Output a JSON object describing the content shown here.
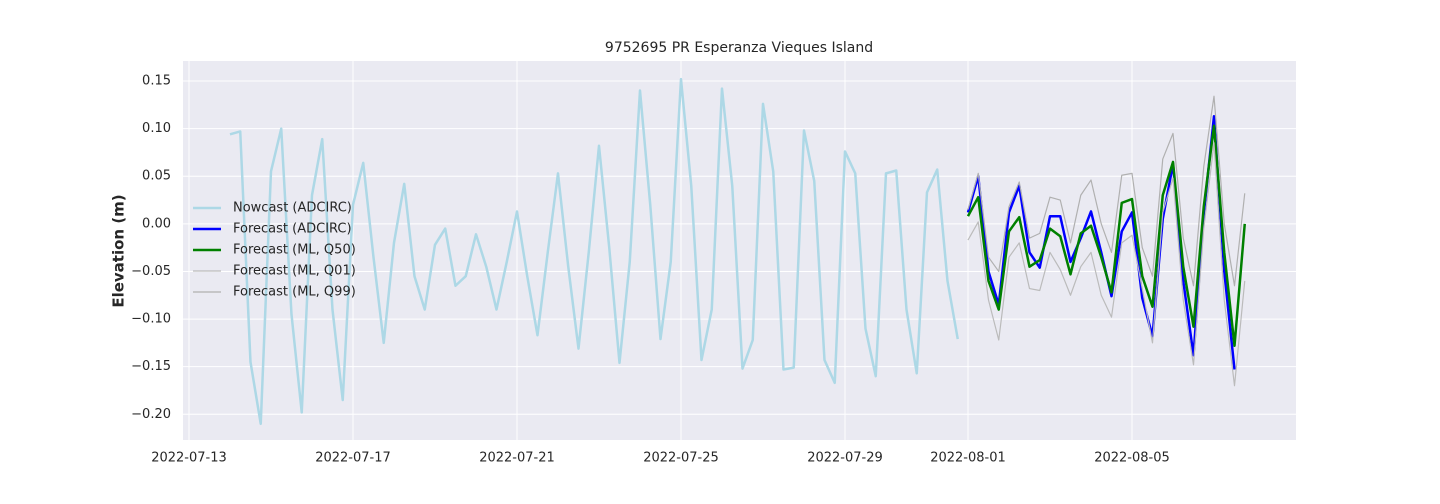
{
  "chart_data": {
    "type": "line",
    "title": "9752695 PR Esperanza Vieques Island",
    "y_label": "Elevation (m)",
    "x": [
      "2022-07-14 00:00",
      "2022-07-14 06:00",
      "2022-07-14 12:00",
      "2022-07-14 18:00",
      "2022-07-15 00:00",
      "2022-07-15 06:00",
      "2022-07-15 12:00",
      "2022-07-15 18:00",
      "2022-07-16 00:00",
      "2022-07-16 06:00",
      "2022-07-16 12:00",
      "2022-07-16 18:00",
      "2022-07-17 00:00",
      "2022-07-17 06:00",
      "2022-07-17 12:00",
      "2022-07-17 18:00",
      "2022-07-18 00:00",
      "2022-07-18 06:00",
      "2022-07-18 12:00",
      "2022-07-18 18:00",
      "2022-07-19 00:00",
      "2022-07-19 06:00",
      "2022-07-19 12:00",
      "2022-07-19 18:00",
      "2022-07-20 00:00",
      "2022-07-20 06:00",
      "2022-07-20 12:00",
      "2022-07-20 18:00",
      "2022-07-21 00:00",
      "2022-07-21 06:00",
      "2022-07-21 12:00",
      "2022-07-21 18:00",
      "2022-07-22 00:00",
      "2022-07-22 06:00",
      "2022-07-22 12:00",
      "2022-07-22 18:00",
      "2022-07-23 00:00",
      "2022-07-23 06:00",
      "2022-07-23 12:00",
      "2022-07-23 18:00",
      "2022-07-24 00:00",
      "2022-07-24 06:00",
      "2022-07-24 12:00",
      "2022-07-24 18:00",
      "2022-07-25 00:00",
      "2022-07-25 06:00",
      "2022-07-25 12:00",
      "2022-07-25 18:00",
      "2022-07-26 00:00",
      "2022-07-26 06:00",
      "2022-07-26 12:00",
      "2022-07-26 18:00",
      "2022-07-27 00:00",
      "2022-07-27 06:00",
      "2022-07-27 12:00",
      "2022-07-27 18:00",
      "2022-07-28 00:00",
      "2022-07-28 06:00",
      "2022-07-28 12:00",
      "2022-07-28 18:00",
      "2022-07-29 00:00",
      "2022-07-29 06:00",
      "2022-07-29 12:00",
      "2022-07-29 18:00",
      "2022-07-30 00:00",
      "2022-07-30 06:00",
      "2022-07-30 12:00",
      "2022-07-30 18:00",
      "2022-07-31 00:00",
      "2022-07-31 06:00",
      "2022-07-31 12:00",
      "2022-07-31 18:00",
      "2022-08-01 00:00",
      "2022-08-01 06:00",
      "2022-08-01 12:00",
      "2022-08-01 18:00",
      "2022-08-02 00:00",
      "2022-08-02 06:00",
      "2022-08-02 12:00",
      "2022-08-02 18:00",
      "2022-08-03 00:00",
      "2022-08-03 06:00",
      "2022-08-03 12:00",
      "2022-08-03 18:00",
      "2022-08-04 00:00",
      "2022-08-04 06:00",
      "2022-08-04 12:00",
      "2022-08-04 18:00",
      "2022-08-05 00:00",
      "2022-08-05 06:00",
      "2022-08-05 12:00",
      "2022-08-05 18:00",
      "2022-08-06 00:00",
      "2022-08-06 06:00",
      "2022-08-06 12:00",
      "2022-08-06 18:00",
      "2022-08-07 00:00",
      "2022-08-07 06:00",
      "2022-08-07 12:00",
      "2022-08-07 18:00"
    ],
    "series": [
      {
        "name": "Nowcast (ADCIRC)",
        "color": "#add8e6",
        "width": 2.5,
        "values": [
          0.094,
          0.097,
          -0.145,
          -0.21,
          0.055,
          0.1,
          -0.095,
          -0.198,
          0.03,
          0.089,
          -0.09,
          -0.185,
          0.02,
          0.064,
          -0.035,
          -0.125,
          -0.02,
          0.042,
          -0.055,
          -0.09,
          -0.022,
          -0.005,
          -0.065,
          -0.055,
          -0.011,
          -0.045,
          -0.09,
          -0.04,
          0.013,
          -0.055,
          -0.117,
          -0.03,
          0.053,
          -0.045,
          -0.131,
          -0.03,
          0.082,
          -0.025,
          -0.146,
          -0.04,
          0.14,
          0.02,
          -0.121,
          -0.04,
          0.152,
          0.04,
          -0.143,
          -0.09,
          0.142,
          0.04,
          -0.152,
          -0.122,
          0.126,
          0.055,
          -0.153,
          -0.151,
          0.098,
          0.045,
          -0.143,
          -0.167,
          0.076,
          0.053,
          -0.11,
          -0.16,
          0.053,
          0.056,
          -0.09,
          -0.157,
          0.033,
          0.057,
          -0.06,
          -0.121,
          null,
          null,
          null,
          null,
          null,
          null,
          null,
          null,
          null,
          null,
          null,
          null,
          null,
          null,
          null,
          null,
          null,
          null,
          null,
          null,
          null,
          null,
          null,
          null,
          null,
          null,
          null,
          null
        ]
      },
      {
        "name": "Forecast (ADCIRC)",
        "color": "#0000ff",
        "width": 2.5,
        "values": [
          null,
          null,
          null,
          null,
          null,
          null,
          null,
          null,
          null,
          null,
          null,
          null,
          null,
          null,
          null,
          null,
          null,
          null,
          null,
          null,
          null,
          null,
          null,
          null,
          null,
          null,
          null,
          null,
          null,
          null,
          null,
          null,
          null,
          null,
          null,
          null,
          null,
          null,
          null,
          null,
          null,
          null,
          null,
          null,
          null,
          null,
          null,
          null,
          null,
          null,
          null,
          null,
          null,
          null,
          null,
          null,
          null,
          null,
          null,
          null,
          null,
          null,
          null,
          null,
          null,
          null,
          null,
          null,
          null,
          null,
          null,
          null,
          0.012,
          0.05,
          -0.05,
          -0.085,
          0.012,
          0.04,
          -0.03,
          -0.046,
          0.008,
          0.008,
          -0.04,
          -0.015,
          0.013,
          -0.03,
          -0.076,
          -0.008,
          0.012,
          -0.078,
          -0.118,
          0.005,
          0.063,
          -0.06,
          -0.138,
          0.01,
          0.113,
          -0.05,
          -0.153,
          null
        ]
      },
      {
        "name": "Forecast (ML, Q50)",
        "color": "#008000",
        "width": 2.5,
        "values": [
          null,
          null,
          null,
          null,
          null,
          null,
          null,
          null,
          null,
          null,
          null,
          null,
          null,
          null,
          null,
          null,
          null,
          null,
          null,
          null,
          null,
          null,
          null,
          null,
          null,
          null,
          null,
          null,
          null,
          null,
          null,
          null,
          null,
          null,
          null,
          null,
          null,
          null,
          null,
          null,
          null,
          null,
          null,
          null,
          null,
          null,
          null,
          null,
          null,
          null,
          null,
          null,
          null,
          null,
          null,
          null,
          null,
          null,
          null,
          null,
          null,
          null,
          null,
          null,
          null,
          null,
          null,
          null,
          null,
          null,
          null,
          null,
          0.008,
          0.028,
          -0.06,
          -0.09,
          -0.008,
          0.007,
          -0.045,
          -0.038,
          -0.005,
          -0.013,
          -0.053,
          -0.01,
          -0.002,
          -0.035,
          -0.072,
          0.022,
          0.026,
          -0.055,
          -0.087,
          0.03,
          0.065,
          -0.045,
          -0.108,
          0.018,
          0.103,
          -0.03,
          -0.128,
          0.0
        ]
      },
      {
        "name": "Forecast (ML, Q01)",
        "color": "#bbbbbb",
        "width": 1.2,
        "values": [
          null,
          null,
          null,
          null,
          null,
          null,
          null,
          null,
          null,
          null,
          null,
          null,
          null,
          null,
          null,
          null,
          null,
          null,
          null,
          null,
          null,
          null,
          null,
          null,
          null,
          null,
          null,
          null,
          null,
          null,
          null,
          null,
          null,
          null,
          null,
          null,
          null,
          null,
          null,
          null,
          null,
          null,
          null,
          null,
          null,
          null,
          null,
          null,
          null,
          null,
          null,
          null,
          null,
          null,
          null,
          null,
          null,
          null,
          null,
          null,
          null,
          null,
          null,
          null,
          null,
          null,
          null,
          null,
          null,
          null,
          null,
          null,
          -0.017,
          0.002,
          -0.08,
          -0.122,
          -0.035,
          -0.02,
          -0.068,
          -0.07,
          -0.03,
          -0.048,
          -0.075,
          -0.045,
          -0.03,
          -0.075,
          -0.098,
          -0.02,
          -0.012,
          -0.068,
          -0.125,
          0.012,
          0.048,
          -0.08,
          -0.148,
          -0.005,
          0.085,
          -0.08,
          -0.17,
          -0.06
        ]
      },
      {
        "name": "Forecast (ML, Q99)",
        "color": "#b0b0b0",
        "width": 1.2,
        "values": [
          null,
          null,
          null,
          null,
          null,
          null,
          null,
          null,
          null,
          null,
          null,
          null,
          null,
          null,
          null,
          null,
          null,
          null,
          null,
          null,
          null,
          null,
          null,
          null,
          null,
          null,
          null,
          null,
          null,
          null,
          null,
          null,
          null,
          null,
          null,
          null,
          null,
          null,
          null,
          null,
          null,
          null,
          null,
          null,
          null,
          null,
          null,
          null,
          null,
          null,
          null,
          null,
          null,
          null,
          null,
          null,
          null,
          null,
          null,
          null,
          null,
          null,
          null,
          null,
          null,
          null,
          null,
          null,
          null,
          null,
          null,
          null,
          0.015,
          0.053,
          -0.035,
          -0.05,
          0.018,
          0.044,
          -0.015,
          -0.01,
          0.028,
          0.025,
          -0.02,
          0.03,
          0.046,
          0.0,
          -0.03,
          0.051,
          0.053,
          -0.025,
          -0.055,
          0.068,
          0.095,
          -0.015,
          -0.065,
          0.06,
          0.134,
          0.0,
          -0.065,
          0.032
        ]
      }
    ],
    "xlim": [
      "2022-07-12 20:30",
      "2022-08-09 00:00"
    ],
    "xticks": [
      "2022-07-13",
      "2022-07-17",
      "2022-07-21",
      "2022-07-25",
      "2022-07-29",
      "2022-08-01",
      "2022-08-05"
    ],
    "ylim": [
      -0.227,
      0.171
    ],
    "yticks": [
      {
        "value": -0.2,
        "label": "−0.20"
      },
      {
        "value": -0.15,
        "label": "−0.15"
      },
      {
        "value": -0.1,
        "label": "−0.10"
      },
      {
        "value": -0.05,
        "label": "−0.05"
      },
      {
        "value": 0,
        "label": "0.00"
      },
      0.05,
      {
        "value": 0.1,
        "label": "0.10"
      },
      0.15
    ],
    "grid": true,
    "legend": "left"
  }
}
